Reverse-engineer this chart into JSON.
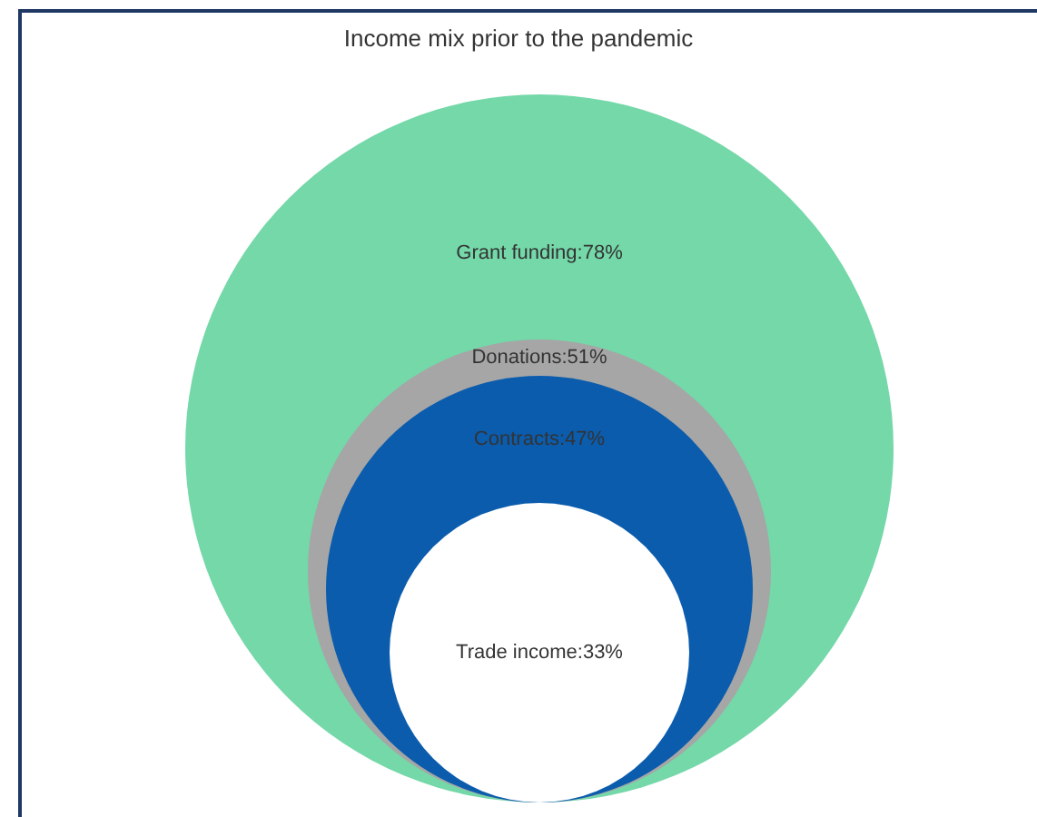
{
  "chart_data": {
    "type": "other",
    "title": "Income mix prior to the pandemic",
    "values": [
      78,
      51,
      47,
      33
    ],
    "colors": [
      "#74d8a9",
      "#a6a6a6",
      "#0b5cad",
      "#ffffff"
    ],
    "value_labels": [
      "Grant funding:78%",
      "Donations:51%",
      "Contracts:47%",
      "Trade income:33%"
    ]
  }
}
